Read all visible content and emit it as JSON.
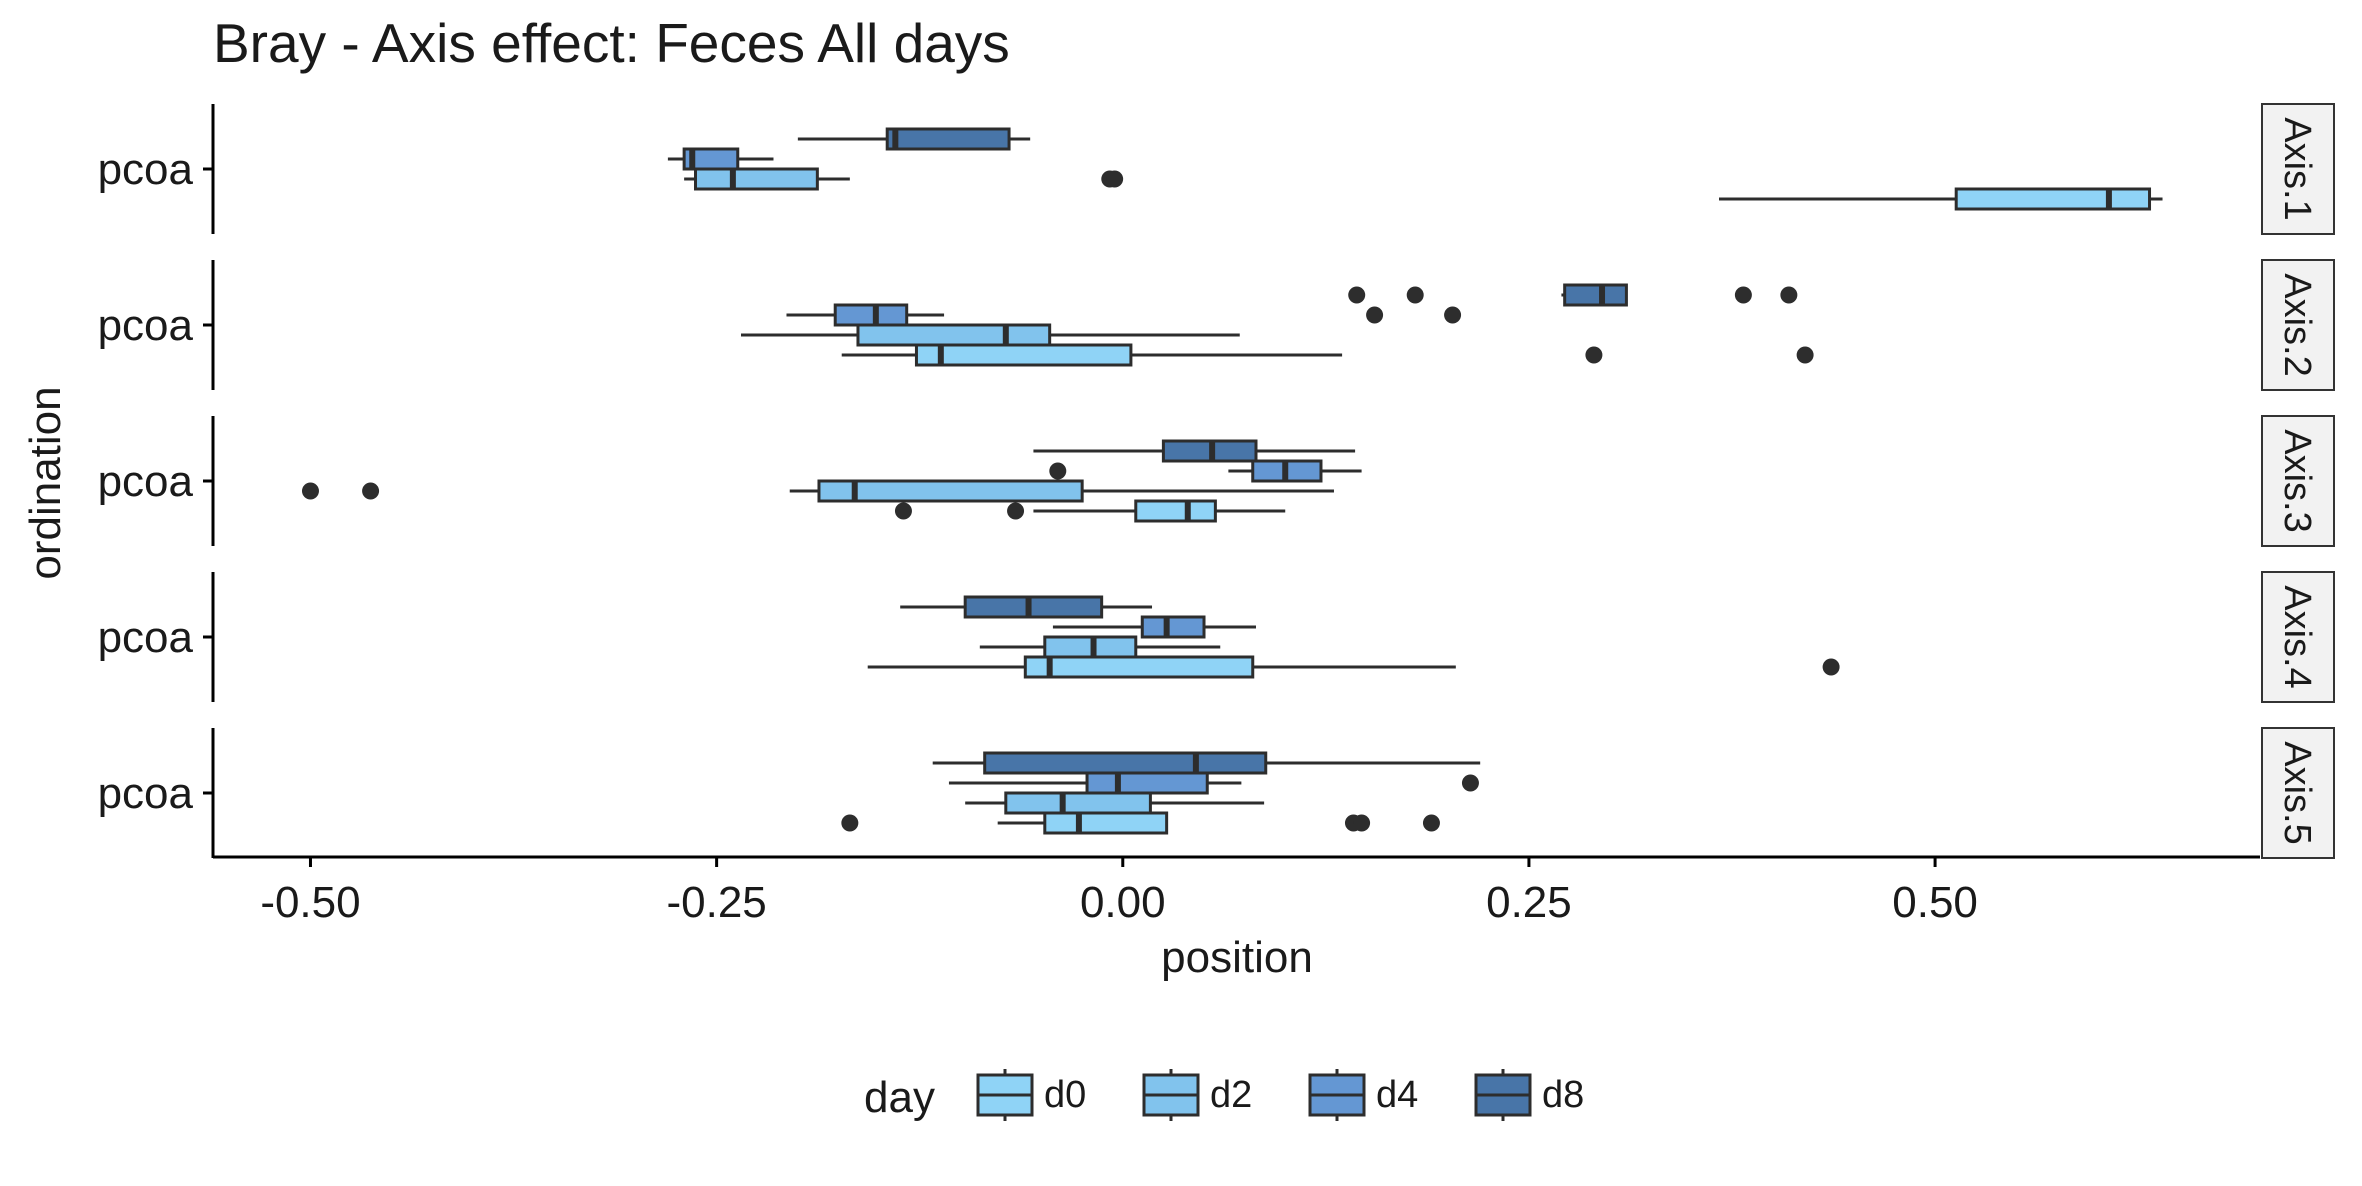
{
  "chart_data": {
    "type": "boxplot",
    "orientation": "horizontal",
    "title": "Bray - Axis effect: Feces All days",
    "xlabel": "position",
    "ylabel": "ordination",
    "xlim": [
      -0.56,
      0.7
    ],
    "xticks": [
      -0.5,
      -0.25,
      0.0,
      0.25,
      0.5
    ],
    "xtick_labels": [
      "-0.50",
      "-0.25",
      "0.00",
      "0.25",
      "0.50"
    ],
    "grid": false,
    "legend": {
      "title": "day",
      "position": "bottom",
      "entries": [
        "d0",
        "d2",
        "d4",
        "d8"
      ]
    },
    "colors": {
      "d0": "#8fd3f6",
      "d2": "#81c3ed",
      "d4": "#6497d3",
      "d8": "#4875a8",
      "outline": "#2d2d2d",
      "strip_fill": "#f2f2f2"
    },
    "panels": [
      {
        "strip": "Axis.1",
        "ylabel": "pcoa",
        "boxes": [
          {
            "day": "d8",
            "wmin": -0.2,
            "q1": -0.145,
            "median": -0.14,
            "q3": -0.07,
            "wmax": -0.057,
            "outliers": []
          },
          {
            "day": "d4",
            "wmin": -0.28,
            "q1": -0.27,
            "median": -0.265,
            "q3": -0.237,
            "wmax": -0.215,
            "outliers": []
          },
          {
            "day": "d2",
            "wmin": -0.27,
            "q1": -0.263,
            "median": -0.24,
            "q3": -0.188,
            "wmax": -0.168,
            "outliers": [
              -0.008,
              -0.005
            ]
          },
          {
            "day": "d0",
            "wmin": 0.367,
            "q1": 0.513,
            "median": 0.607,
            "q3": 0.632,
            "wmax": 0.64,
            "outliers": []
          }
        ]
      },
      {
        "strip": "Axis.2",
        "ylabel": "pcoa",
        "boxes": [
          {
            "day": "d8",
            "wmin": 0.27,
            "q1": 0.272,
            "median": 0.295,
            "q3": 0.31,
            "wmax": 0.31,
            "outliers": [
              0.144,
              0.18,
              0.382,
              0.41
            ]
          },
          {
            "day": "d4",
            "wmin": -0.207,
            "q1": -0.177,
            "median": -0.152,
            "q3": -0.133,
            "wmax": -0.11,
            "outliers": [
              0.155,
              0.203
            ]
          },
          {
            "day": "d2",
            "wmin": -0.235,
            "q1": -0.163,
            "median": -0.072,
            "q3": -0.045,
            "wmax": 0.072,
            "outliers": []
          },
          {
            "day": "d0",
            "wmin": -0.173,
            "q1": -0.127,
            "median": -0.112,
            "q3": 0.005,
            "wmax": 0.135,
            "outliers": [
              0.29,
              0.42
            ]
          }
        ]
      },
      {
        "strip": "Axis.3",
        "ylabel": "pcoa",
        "boxes": [
          {
            "day": "d8",
            "wmin": -0.055,
            "q1": 0.025,
            "median": 0.055,
            "q3": 0.082,
            "wmax": 0.143,
            "outliers": []
          },
          {
            "day": "d4",
            "wmin": 0.065,
            "q1": 0.08,
            "median": 0.1,
            "q3": 0.122,
            "wmax": 0.147,
            "outliers": [
              -0.04
            ]
          },
          {
            "day": "d2",
            "wmin": -0.205,
            "q1": -0.187,
            "median": -0.165,
            "q3": -0.025,
            "wmax": 0.13,
            "outliers": [
              -0.5,
              -0.463
            ]
          },
          {
            "day": "d0",
            "wmin": -0.055,
            "q1": 0.008,
            "median": 0.04,
            "q3": 0.057,
            "wmax": 0.1,
            "outliers": [
              -0.135,
              -0.066
            ]
          }
        ]
      },
      {
        "strip": "Axis.4",
        "ylabel": "pcoa",
        "boxes": [
          {
            "day": "d8",
            "wmin": -0.137,
            "q1": -0.097,
            "median": -0.058,
            "q3": -0.013,
            "wmax": 0.018,
            "outliers": []
          },
          {
            "day": "d4",
            "wmin": -0.043,
            "q1": 0.012,
            "median": 0.027,
            "q3": 0.05,
            "wmax": 0.082,
            "outliers": []
          },
          {
            "day": "d2",
            "wmin": -0.088,
            "q1": -0.048,
            "median": -0.018,
            "q3": 0.008,
            "wmax": 0.06,
            "outliers": []
          },
          {
            "day": "d0",
            "wmin": -0.157,
            "q1": -0.06,
            "median": -0.045,
            "q3": 0.08,
            "wmax": 0.205,
            "outliers": [
              0.436
            ]
          }
        ]
      },
      {
        "strip": "Axis.5",
        "ylabel": "pcoa",
        "boxes": [
          {
            "day": "d8",
            "wmin": -0.117,
            "q1": -0.085,
            "median": 0.045,
            "q3": 0.088,
            "wmax": 0.22,
            "outliers": []
          },
          {
            "day": "d4",
            "wmin": -0.107,
            "q1": -0.022,
            "median": -0.003,
            "q3": 0.052,
            "wmax": 0.073,
            "outliers": [
              0.214
            ]
          },
          {
            "day": "d2",
            "wmin": -0.097,
            "q1": -0.072,
            "median": -0.037,
            "q3": 0.017,
            "wmax": 0.087,
            "outliers": []
          },
          {
            "day": "d0",
            "wmin": -0.077,
            "q1": -0.048,
            "median": -0.027,
            "q3": 0.027,
            "wmax": 0.027,
            "outliers": [
              -0.168,
              0.142,
              0.147,
              0.19
            ]
          }
        ]
      }
    ]
  }
}
